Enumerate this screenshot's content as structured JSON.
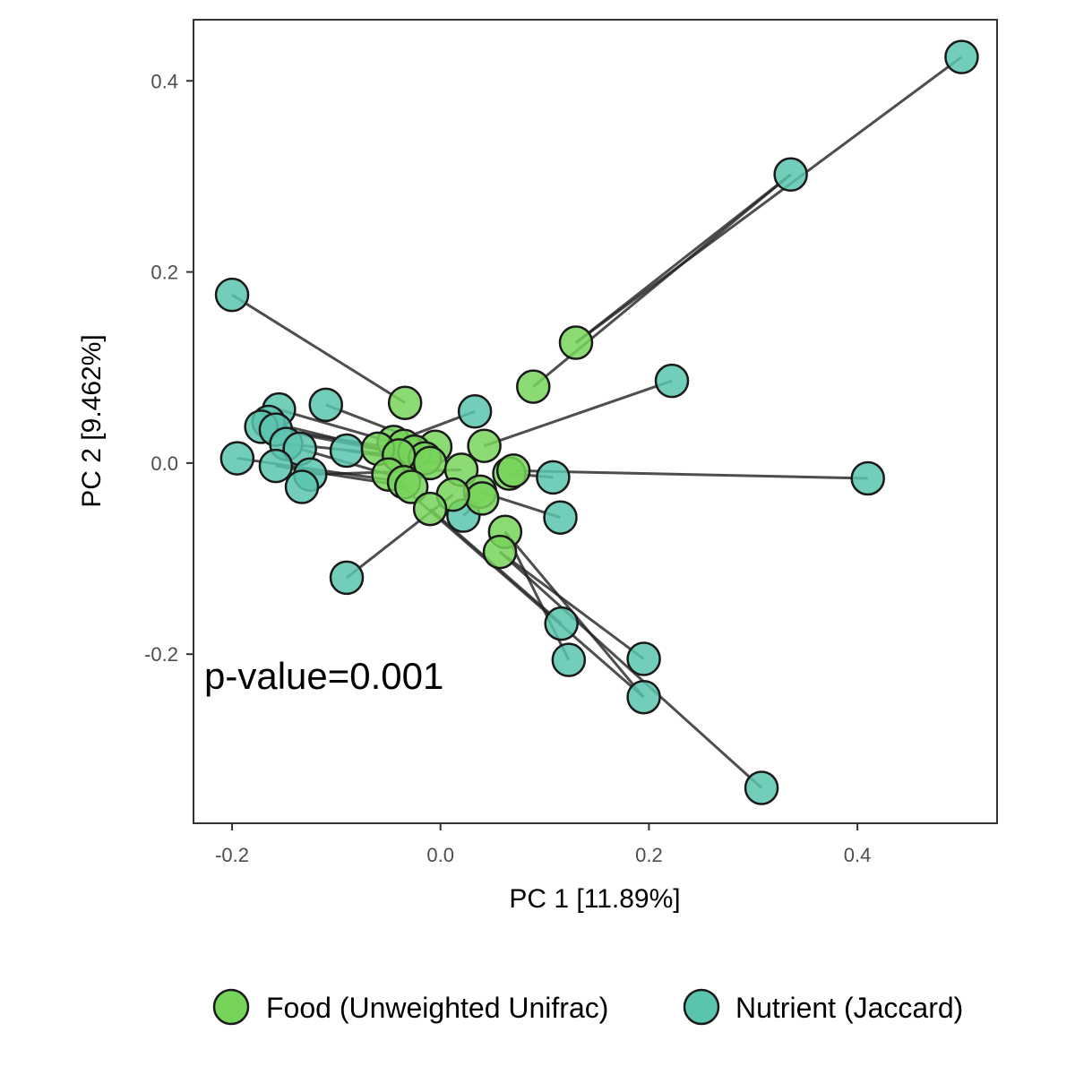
{
  "chart_data": {
    "type": "scatter",
    "xlabel": "PC 1 [11.89%]",
    "ylabel": "PC 2 [9.462%]",
    "xlim": [
      -0.237,
      0.534
    ],
    "ylim": [
      -0.377,
      0.464
    ],
    "xticks": [
      -0.2,
      0.0,
      0.2,
      0.4
    ],
    "yticks": [
      -0.2,
      0.0,
      0.2,
      0.4
    ],
    "xtick_labels": [
      "-0.2",
      "0.0",
      "0.2",
      "0.4"
    ],
    "ytick_labels": [
      "-0.2",
      "0.0",
      "0.2",
      "0.4"
    ],
    "grid": false,
    "legend_position": "bottom",
    "annotation": "p-value=0.001",
    "series": [
      {
        "name": "Food (Unweighted Unifrac)",
        "color": "#77D45B",
        "points": [
          [
            0.13,
            0.126
          ],
          [
            0.089,
            0.08
          ],
          [
            -0.034,
            0.063
          ],
          [
            0.042,
            0.018
          ],
          [
            -0.005,
            0.017
          ],
          [
            -0.045,
            0.022
          ],
          [
            -0.035,
            0.018
          ],
          [
            -0.06,
            0.015
          ],
          [
            -0.025,
            0.012
          ],
          [
            -0.015,
            0.005
          ],
          [
            -0.04,
            0.008
          ],
          [
            -0.01,
            0.0
          ],
          [
            -0.05,
            -0.012
          ],
          [
            -0.035,
            -0.02
          ],
          [
            -0.028,
            -0.025
          ],
          [
            0.02,
            -0.007
          ],
          [
            0.066,
            -0.011
          ],
          [
            0.07,
            -0.008
          ],
          [
            0.038,
            -0.03
          ],
          [
            0.04,
            -0.037
          ],
          [
            0.012,
            -0.033
          ],
          [
            -0.01,
            -0.048
          ],
          [
            0.062,
            -0.072
          ],
          [
            0.057,
            -0.093
          ]
        ]
      },
      {
        "name": "Nutrient (Jaccard)",
        "color": "#5BC4AF",
        "points": [
          [
            0.5,
            0.425
          ],
          [
            0.336,
            0.302
          ],
          [
            -0.2,
            0.176
          ],
          [
            0.222,
            0.086
          ],
          [
            -0.11,
            0.061
          ],
          [
            0.033,
            0.054
          ],
          [
            -0.155,
            0.056
          ],
          [
            -0.165,
            0.043
          ],
          [
            -0.172,
            0.038
          ],
          [
            -0.158,
            0.035
          ],
          [
            -0.148,
            0.02
          ],
          [
            -0.09,
            0.013
          ],
          [
            -0.135,
            0.015
          ],
          [
            -0.195,
            0.005
          ],
          [
            -0.158,
            -0.003
          ],
          [
            -0.125,
            -0.012
          ],
          [
            -0.133,
            -0.025
          ],
          [
            0.108,
            -0.015
          ],
          [
            0.41,
            -0.016
          ],
          [
            0.115,
            -0.057
          ],
          [
            0.022,
            -0.055
          ],
          [
            -0.09,
            -0.12
          ],
          [
            0.116,
            -0.168
          ],
          [
            0.123,
            -0.206
          ],
          [
            0.195,
            -0.205
          ],
          [
            0.195,
            -0.245
          ],
          [
            0.308,
            -0.34
          ]
        ]
      }
    ],
    "pairs": [
      [
        0,
        0
      ],
      [
        0,
        1
      ],
      [
        1,
        1
      ],
      [
        2,
        2
      ],
      [
        3,
        3
      ],
      [
        4,
        4
      ],
      [
        5,
        5
      ],
      [
        6,
        6
      ],
      [
        7,
        7
      ],
      [
        8,
        8
      ],
      [
        9,
        9
      ],
      [
        10,
        10
      ],
      [
        11,
        11
      ],
      [
        12,
        12
      ],
      [
        13,
        13
      ],
      [
        14,
        14
      ],
      [
        15,
        15
      ],
      [
        16,
        17
      ],
      [
        17,
        18
      ],
      [
        18,
        19
      ],
      [
        19,
        20
      ],
      [
        20,
        21
      ],
      [
        21,
        22
      ],
      [
        22,
        23
      ],
      [
        23,
        24
      ],
      [
        12,
        25
      ],
      [
        23,
        26
      ],
      [
        22,
        25
      ]
    ]
  }
}
